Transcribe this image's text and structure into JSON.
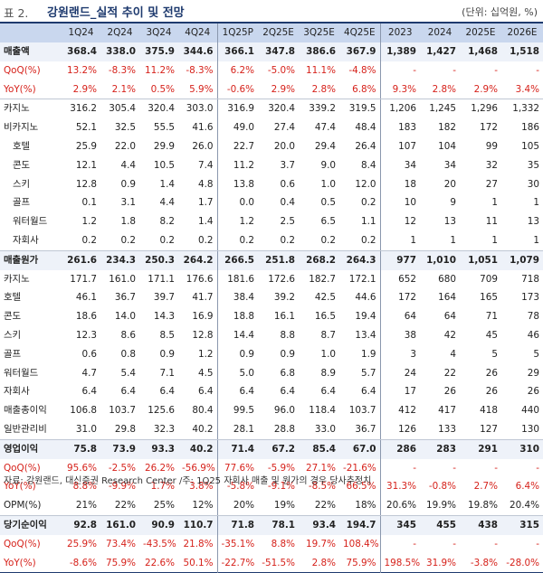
{
  "header": {
    "table_number": "표 2.",
    "title": "강원랜드_실적 추이 및 전망",
    "unit": "(단위: 십억원, %)"
  },
  "columns": [
    "",
    "1Q24",
    "2Q24",
    "3Q24",
    "4Q24",
    "1Q25P",
    "2Q25E",
    "3Q25E",
    "4Q25E",
    "2023",
    "2024",
    "2025E",
    "2026E"
  ],
  "rows": [
    {
      "label": "매출액",
      "style": "bold",
      "values": [
        "368.4",
        "338.0",
        "375.9",
        "344.6",
        "366.1",
        "347.8",
        "386.6",
        "367.9",
        "1,389",
        "1,427",
        "1,468",
        "1,518"
      ]
    },
    {
      "label": "QoQ(%)",
      "style": "red",
      "values": [
        "13.2%",
        "-8.3%",
        "11.2%",
        "-8.3%",
        "6.2%",
        "-5.0%",
        "11.1%",
        "-4.8%",
        "-",
        "-",
        "-",
        "-"
      ]
    },
    {
      "label": "YoY(%)",
      "style": "red",
      "values": [
        "2.9%",
        "2.1%",
        "0.5%",
        "5.9%",
        "-0.6%",
        "2.9%",
        "2.8%",
        "6.8%",
        "9.3%",
        "2.8%",
        "2.9%",
        "3.4%"
      ]
    },
    {
      "label": "카지노",
      "style": "plain",
      "values": [
        "316.2",
        "305.4",
        "320.4",
        "303.0",
        "316.9",
        "320.4",
        "339.2",
        "319.5",
        "1,206",
        "1,245",
        "1,296",
        "1,332"
      ]
    },
    {
      "label": "비카지노",
      "style": "plain",
      "values": [
        "52.1",
        "32.5",
        "55.5",
        "41.6",
        "49.0",
        "27.4",
        "47.4",
        "48.4",
        "183",
        "182",
        "172",
        "186"
      ]
    },
    {
      "label": "호텔",
      "style": "sub",
      "values": [
        "25.9",
        "22.0",
        "29.9",
        "26.0",
        "22.7",
        "20.0",
        "29.4",
        "26.4",
        "107",
        "104",
        "99",
        "105"
      ]
    },
    {
      "label": "콘도",
      "style": "sub",
      "values": [
        "12.1",
        "4.4",
        "10.5",
        "7.4",
        "11.2",
        "3.7",
        "9.0",
        "8.4",
        "34",
        "34",
        "32",
        "35"
      ]
    },
    {
      "label": "스키",
      "style": "sub",
      "values": [
        "12.8",
        "0.9",
        "1.4",
        "4.8",
        "13.8",
        "0.6",
        "1.0",
        "12.0",
        "18",
        "20",
        "27",
        "30"
      ]
    },
    {
      "label": "골프",
      "style": "sub",
      "values": [
        "0.1",
        "3.1",
        "4.4",
        "1.7",
        "0.0",
        "0.4",
        "0.5",
        "0.2",
        "10",
        "9",
        "1",
        "1"
      ]
    },
    {
      "label": "워터월드",
      "style": "sub",
      "values": [
        "1.2",
        "1.8",
        "8.2",
        "1.4",
        "1.2",
        "2.5",
        "6.5",
        "1.1",
        "12",
        "13",
        "11",
        "13"
      ]
    },
    {
      "label": "자회사",
      "style": "sub",
      "values": [
        "0.2",
        "0.2",
        "0.2",
        "0.2",
        "0.2",
        "0.2",
        "0.2",
        "0.2",
        "1",
        "1",
        "1",
        "1"
      ]
    },
    {
      "label": "매출원가",
      "style": "bold",
      "values": [
        "261.6",
        "234.3",
        "250.3",
        "264.2",
        "266.5",
        "251.8",
        "268.2",
        "264.3",
        "977",
        "1,010",
        "1,051",
        "1,079"
      ]
    },
    {
      "label": "카지노",
      "style": "plain",
      "values": [
        "171.7",
        "161.0",
        "171.1",
        "176.6",
        "181.6",
        "172.6",
        "182.7",
        "172.1",
        "652",
        "680",
        "709",
        "718"
      ]
    },
    {
      "label": "호텔",
      "style": "plain",
      "values": [
        "46.1",
        "36.7",
        "39.7",
        "41.7",
        "38.4",
        "39.2",
        "42.5",
        "44.6",
        "172",
        "164",
        "165",
        "173"
      ]
    },
    {
      "label": "콘도",
      "style": "plain",
      "values": [
        "18.6",
        "14.0",
        "14.3",
        "16.9",
        "18.8",
        "16.1",
        "16.5",
        "19.4",
        "64",
        "64",
        "71",
        "78"
      ]
    },
    {
      "label": "스키",
      "style": "plain",
      "values": [
        "12.3",
        "8.6",
        "8.5",
        "12.8",
        "14.4",
        "8.8",
        "8.7",
        "13.4",
        "38",
        "42",
        "45",
        "46"
      ]
    },
    {
      "label": "골프",
      "style": "plain",
      "values": [
        "0.6",
        "0.8",
        "0.9",
        "1.2",
        "0.9",
        "0.9",
        "1.0",
        "1.9",
        "3",
        "4",
        "5",
        "5"
      ]
    },
    {
      "label": "워터월드",
      "style": "plain",
      "values": [
        "4.7",
        "5.4",
        "7.1",
        "4.5",
        "5.0",
        "6.8",
        "8.9",
        "5.7",
        "24",
        "22",
        "26",
        "29"
      ]
    },
    {
      "label": "자회사",
      "style": "plain",
      "values": [
        "6.4",
        "6.4",
        "6.4",
        "6.4",
        "6.4",
        "6.4",
        "6.4",
        "6.4",
        "17",
        "26",
        "26",
        "26"
      ]
    },
    {
      "label": "매출총이익",
      "style": "plain",
      "values": [
        "106.8",
        "103.7",
        "125.6",
        "80.4",
        "99.5",
        "96.0",
        "118.4",
        "103.7",
        "412",
        "417",
        "418",
        "440"
      ]
    },
    {
      "label": "일반관리비",
      "style": "plain",
      "values": [
        "31.0",
        "29.8",
        "32.3",
        "40.2",
        "28.1",
        "28.8",
        "33.0",
        "36.7",
        "126",
        "133",
        "127",
        "130"
      ]
    },
    {
      "label": "영업이익",
      "style": "bold",
      "values": [
        "75.8",
        "73.9",
        "93.3",
        "40.2",
        "71.4",
        "67.2",
        "85.4",
        "67.0",
        "286",
        "283",
        "291",
        "310"
      ]
    },
    {
      "label": "QoQ(%)",
      "style": "red",
      "values": [
        "95.6%",
        "-2.5%",
        "26.2%",
        "-56.9%",
        "77.6%",
        "-5.9%",
        "27.1%",
        "-21.6%",
        "-",
        "-",
        "-",
        "-"
      ]
    },
    {
      "label": "YoY(%)",
      "style": "red",
      "values": [
        "8.8%",
        "-9.9%",
        "1.7%",
        "3.8%",
        "-5.8%",
        "-9.1%",
        "-8.5%",
        "66.5%",
        "31.3%",
        "-0.8%",
        "2.7%",
        "6.4%"
      ]
    },
    {
      "label": "OPM(%)",
      "style": "plain",
      "values": [
        "21%",
        "22%",
        "25%",
        "12%",
        "20%",
        "19%",
        "22%",
        "18%",
        "20.6%",
        "19.9%",
        "19.8%",
        "20.4%"
      ]
    },
    {
      "label": "당기순이익",
      "style": "bold",
      "values": [
        "92.8",
        "161.0",
        "90.9",
        "110.7",
        "71.8",
        "78.1",
        "93.4",
        "194.7",
        "345",
        "455",
        "438",
        "315"
      ]
    },
    {
      "label": "QoQ(%)",
      "style": "red",
      "values": [
        "25.9%",
        "73.4%",
        "-43.5%",
        "21.8%",
        "-35.1%",
        "8.8%",
        "19.7%",
        "108.4%",
        "-",
        "-",
        "-",
        "-"
      ]
    },
    {
      "label": "YoY(%)",
      "style": "red",
      "values": [
        "-8.6%",
        "75.9%",
        "22.6%",
        "50.1%",
        "-22.7%",
        "-51.5%",
        "2.8%",
        "75.9%",
        "198.5%",
        "31.9%",
        "-3.8%",
        "-28.0%"
      ]
    }
  ],
  "footer": {
    "source": "자료: 강원랜드, 대신증권 Research Center /주: 1Q25 자회사 매출 및 원가의 경우 당사추정치"
  },
  "colors": {
    "header_fill": "#c9d7ee",
    "bold_row_fill": "#eef2f9",
    "red_text": "#d6221b",
    "navy": "#1e3a6e"
  }
}
